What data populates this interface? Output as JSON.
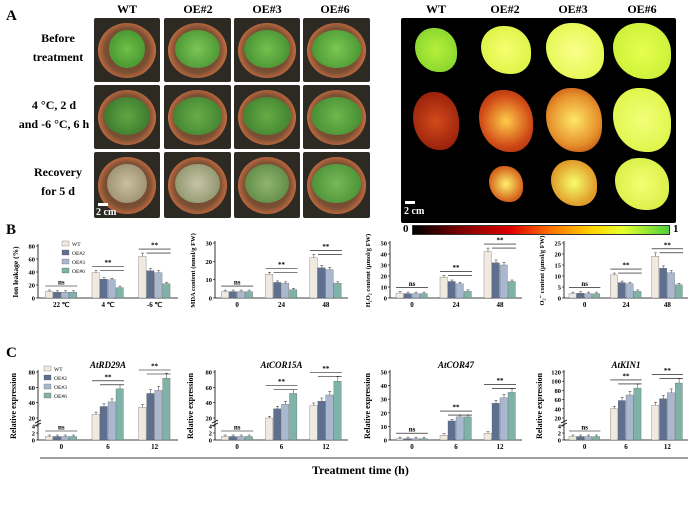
{
  "panel_A": {
    "letter": "A",
    "columns": [
      "WT",
      "OE#2",
      "OE#3",
      "OE#6"
    ],
    "rows": [
      {
        "line1": "Before",
        "line2": "treatment"
      },
      {
        "line1": "4 °C, 2 d",
        "line2": "and -6 °C, 6 h"
      },
      {
        "line1": "Recovery",
        "line2": "for 5 d"
      }
    ],
    "scale_label": "2 cm",
    "colorbar_min": "0",
    "colorbar_max": "1",
    "colors": {
      "healthy": "#5aa83a",
      "damaged": "#b9a88c",
      "ir_low": "#9a1a10",
      "ir_high": "#d7ff3a"
    }
  },
  "panel_B": {
    "letter": "B",
    "legend": [
      "WT",
      "OE#2",
      "OE#3",
      "OE#6"
    ],
    "series_colors": [
      "#efe9df",
      "#5f6f90",
      "#a9b7cf",
      "#7fb3a8"
    ]
  },
  "panel_C": {
    "letter": "C",
    "legend": [
      "WT",
      "OE#2",
      "OE#3",
      "OE#6"
    ],
    "xlabel": "Treatment time (h)"
  },
  "chart_data": [
    {
      "type": "bar",
      "id": "ion",
      "ylabel": "Ion leakage (%)",
      "categories": [
        "22 ℃",
        "4 ℃",
        "-6 ℃"
      ],
      "ylim": [
        0,
        80
      ],
      "yticks": [
        0,
        20,
        40,
        60,
        80
      ],
      "series": [
        {
          "name": "WT",
          "values": [
            10,
            39,
            64
          ]
        },
        {
          "name": "OE#2",
          "values": [
            9,
            29,
            42
          ]
        },
        {
          "name": "OE#3",
          "values": [
            9,
            28,
            39
          ]
        },
        {
          "name": "OE#6",
          "values": [
            9,
            16,
            22
          ]
        }
      ],
      "annotations": [
        "ns",
        "**",
        "**"
      ]
    },
    {
      "type": "bar",
      "id": "mda",
      "ylabel": "MDA content (nmol/g FW)",
      "categories": [
        "0",
        "24",
        "48"
      ],
      "ylim": [
        0,
        30
      ],
      "yticks": [
        0,
        10,
        20,
        30
      ],
      "series": [
        {
          "name": "WT",
          "values": [
            3.5,
            13,
            22
          ]
        },
        {
          "name": "OE#2",
          "values": [
            3.5,
            8.5,
            16.5
          ]
        },
        {
          "name": "OE#3",
          "values": [
            3.5,
            8,
            15.5
          ]
        },
        {
          "name": "OE#6",
          "values": [
            3.5,
            4.5,
            8
          ]
        }
      ],
      "annotations": [
        "ns",
        "**",
        "**"
      ]
    },
    {
      "type": "bar",
      "id": "h2o2",
      "ylabel": "H₂O₂ content (μmol/g FW)",
      "categories": [
        "0",
        "24",
        "48"
      ],
      "ylim": [
        0,
        50
      ],
      "yticks": [
        0,
        10,
        20,
        30,
        40,
        50
      ],
      "series": [
        {
          "name": "WT",
          "values": [
            4.5,
            19,
            42
          ]
        },
        {
          "name": "OE#2",
          "values": [
            4,
            15,
            32
          ]
        },
        {
          "name": "OE#3",
          "values": [
            4,
            13,
            30
          ]
        },
        {
          "name": "OE#6",
          "values": [
            4,
            6,
            15
          ]
        }
      ],
      "annotations": [
        "ns",
        "**",
        "**"
      ]
    },
    {
      "type": "bar",
      "id": "o2",
      "ylabel": "O₂⁻ content (μmol/g FW)",
      "categories": [
        "0",
        "24",
        "48"
      ],
      "ylim": [
        0,
        25
      ],
      "yticks": [
        0,
        5,
        10,
        15,
        20,
        25
      ],
      "series": [
        {
          "name": "WT",
          "values": [
            2,
            10.5,
            19
          ]
        },
        {
          "name": "OE#2",
          "values": [
            2.2,
            7,
            13.5
          ]
        },
        {
          "name": "OE#3",
          "values": [
            2,
            6.5,
            11.5
          ]
        },
        {
          "name": "OE#6",
          "values": [
            2,
            3,
            6
          ]
        }
      ],
      "annotations": [
        "ns",
        "**",
        "**"
      ]
    },
    {
      "type": "bar",
      "id": "rd29a",
      "title": "AtRD29A",
      "ylabel": "Relative expression",
      "categories": [
        "0",
        "6",
        "12"
      ],
      "broken_axis": true,
      "yticks_low": [
        0,
        2,
        4
      ],
      "yticks_high": [
        20,
        40,
        60,
        80
      ],
      "ylim_high": [
        20,
        80
      ],
      "series": [
        {
          "name": "WT",
          "values": [
            1,
            25,
            34
          ]
        },
        {
          "name": "OE#2",
          "values": [
            1,
            35,
            52
          ]
        },
        {
          "name": "OE#3",
          "values": [
            1,
            41,
            56
          ]
        },
        {
          "name": "OE#6",
          "values": [
            1,
            58,
            72
          ]
        }
      ],
      "annotations": [
        "ns",
        "**",
        "**"
      ]
    },
    {
      "type": "bar",
      "id": "cor15a",
      "title": "AtCOR15A",
      "ylabel": "Relative expression",
      "categories": [
        "0",
        "6",
        "12"
      ],
      "broken_axis": true,
      "yticks_low": [
        0,
        2,
        4
      ],
      "yticks_high": [
        20,
        40,
        60,
        80
      ],
      "ylim_high": [
        20,
        80
      ],
      "series": [
        {
          "name": "WT",
          "values": [
            1,
            20,
            36
          ]
        },
        {
          "name": "OE#2",
          "values": [
            1,
            32,
            42
          ]
        },
        {
          "name": "OE#3",
          "values": [
            1,
            38,
            50
          ]
        },
        {
          "name": "OE#6",
          "values": [
            1,
            52,
            68
          ]
        }
      ],
      "annotations": [
        "ns",
        "**",
        "**"
      ]
    },
    {
      "type": "bar",
      "id": "cor47",
      "title": "AtCOR47",
      "ylabel": "Relative expression",
      "categories": [
        "0",
        "6",
        "12"
      ],
      "broken_axis": false,
      "ylim": [
        0,
        50
      ],
      "yticks": [
        0,
        10,
        20,
        30,
        40,
        50
      ],
      "series": [
        {
          "name": "WT",
          "values": [
            1,
            3.5,
            5
          ]
        },
        {
          "name": "OE#2",
          "values": [
            1,
            14,
            27
          ]
        },
        {
          "name": "OE#3",
          "values": [
            1,
            17,
            31
          ]
        },
        {
          "name": "OE#6",
          "values": [
            1,
            17,
            35
          ]
        }
      ],
      "annotations": [
        "ns",
        "**",
        "**"
      ]
    },
    {
      "type": "bar",
      "id": "kin1",
      "title": "AtKIN1",
      "ylabel": "Relative expression",
      "categories": [
        "0",
        "6",
        "12"
      ],
      "broken_axis": true,
      "yticks_low": [
        0,
        2,
        4
      ],
      "yticks_high": [
        20,
        40,
        60,
        80,
        100,
        120
      ],
      "ylim_high": [
        20,
        120
      ],
      "series": [
        {
          "name": "WT",
          "values": [
            1,
            40,
            48
          ]
        },
        {
          "name": "OE#2",
          "values": [
            1,
            58,
            62
          ]
        },
        {
          "name": "OE#3",
          "values": [
            1,
            70,
            75
          ]
        },
        {
          "name": "OE#6",
          "values": [
            1,
            85,
            96
          ]
        }
      ],
      "annotations": [
        "ns",
        "**",
        "**"
      ]
    }
  ]
}
